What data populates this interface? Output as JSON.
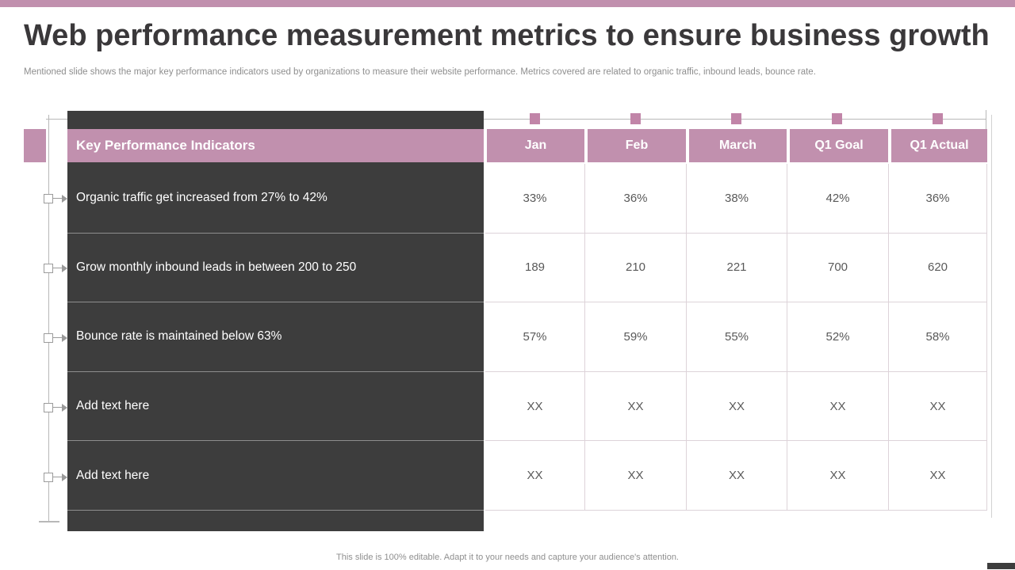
{
  "slide": {
    "title": "Web performance measurement metrics to ensure business growth",
    "subtitle": "Mentioned slide shows the major key performance indicators used by organizations to measure their website performance. Metrics covered are related to organic traffic, inbound leads, bounce rate.",
    "footer": "This slide is 100% editable. Adapt it to your needs and capture your audience's attention."
  },
  "colors": {
    "accent_pink": "#c190ae",
    "handle_pink": "#c185a8",
    "dark_panel": "#3d3d3d",
    "value_text": "#595959"
  },
  "table": {
    "header": [
      "Key Performance Indicators",
      "Jan",
      "Feb",
      "March",
      "Q1 Goal",
      "Q1 Actual"
    ],
    "rows": [
      {
        "label": "Organic traffic get increased from 27% to 42%",
        "values": [
          "33%",
          "36%",
          "38%",
          "42%",
          "36%"
        ]
      },
      {
        "label": "Grow monthly inbound leads in between 200 to 250",
        "values": [
          "189",
          "210",
          "221",
          "700",
          "620"
        ]
      },
      {
        "label": "Bounce rate is maintained below 63%",
        "values": [
          "57%",
          "59%",
          "55%",
          "52%",
          "58%"
        ]
      },
      {
        "label": "Add text here",
        "values": [
          "XX",
          "XX",
          "XX",
          "XX",
          "XX"
        ]
      },
      {
        "label": "Add text here",
        "values": [
          "XX",
          "XX",
          "XX",
          "XX",
          "XX"
        ]
      }
    ]
  }
}
